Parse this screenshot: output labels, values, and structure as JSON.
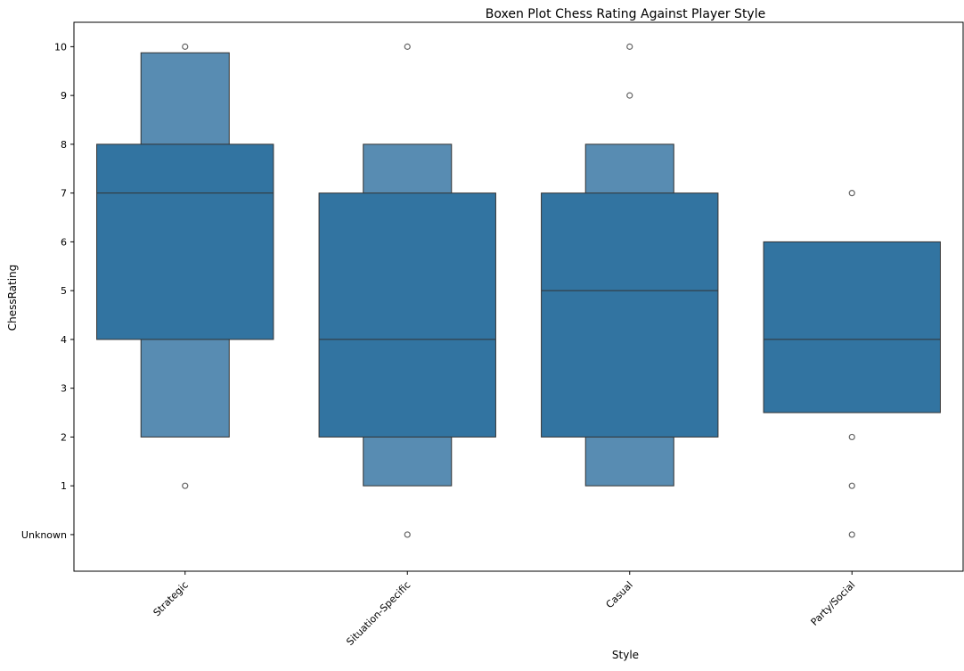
{
  "chart_data": {
    "type": "boxen",
    "title": "Boxen Plot Chess Rating Against Player Style",
    "xlabel": "Style",
    "ylabel": "ChessRating",
    "categories": [
      "Strategic",
      "Situation-Specific",
      "Casual",
      "Party/Social"
    ],
    "y_ticks": [
      "Unknown",
      "1",
      "2",
      "3",
      "4",
      "5",
      "6",
      "7",
      "8",
      "9",
      "10"
    ],
    "ylim": [
      -0.75,
      10.5
    ],
    "x_tick_rotation": 45,
    "grid": false,
    "colors": {
      "inner_box": "#3274a1",
      "outer_box": "#588cb2",
      "edge": "#333333",
      "outlier": "#666666"
    },
    "groups": [
      {
        "category": "Strategic",
        "median": 7,
        "box": [
          4,
          8
        ],
        "outer": [
          2,
          9.875
        ],
        "outliers": [
          10,
          1
        ]
      },
      {
        "category": "Situation-Specific",
        "median": 4,
        "box": [
          2,
          7
        ],
        "outer": [
          1,
          8
        ],
        "outliers": [
          10,
          0
        ]
      },
      {
        "category": "Casual",
        "median": 5,
        "box": [
          2,
          7
        ],
        "outer": [
          1,
          8
        ],
        "outliers": [
          10,
          9
        ]
      },
      {
        "category": "Party/Social",
        "median": 4,
        "box": [
          2.5,
          6
        ],
        "outer": null,
        "outliers": [
          7,
          2,
          1,
          0
        ]
      }
    ]
  }
}
